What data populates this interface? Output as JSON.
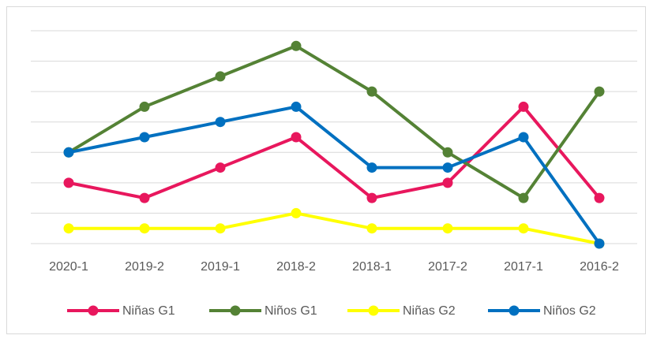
{
  "chart_data": {
    "type": "line",
    "categories": [
      "2020-1",
      "2019-2",
      "2019-1",
      "2018-2",
      "2018-1",
      "2017-2",
      "2017-1",
      "2016-2"
    ],
    "series": [
      {
        "name": "Niñas G1",
        "color": "#e8175d",
        "values": [
          2,
          1.5,
          2.5,
          3.5,
          1.5,
          2,
          4.5,
          1.5
        ]
      },
      {
        "name": "Niños G1",
        "color": "#548235",
        "values": [
          3,
          4.5,
          5.5,
          6.5,
          5,
          3,
          1.5,
          5
        ]
      },
      {
        "name": "Niñas G2",
        "color": "#ffff00",
        "values": [
          0.5,
          0.5,
          0.5,
          1,
          0.5,
          0.5,
          0.5,
          0
        ]
      },
      {
        "name": "Niños G2",
        "color": "#0070c0",
        "values": [
          3,
          3.5,
          4,
          4.5,
          2.5,
          2.5,
          3.5,
          0
        ]
      }
    ],
    "ylim": [
      0,
      7
    ],
    "yticks": [
      0,
      1,
      2,
      3,
      4,
      5,
      6,
      7
    ],
    "grid": true,
    "legend": "bottom"
  }
}
